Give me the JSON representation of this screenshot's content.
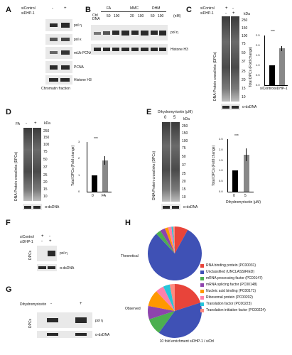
{
  "panels": {
    "A": {
      "label": "A",
      "conditions": [
        "siControl",
        "siDHP-1"
      ],
      "signs": [
        "-",
        "+"
      ],
      "blots": [
        "pol η",
        "pol κ",
        "mUb PCNA",
        "PCNA",
        "Histone H3"
      ],
      "footer": "Chromatin fraction"
    },
    "B": {
      "label": "B",
      "groups": [
        "FA",
        "MMC",
        "DHM"
      ],
      "lanes": [
        "Ctrl",
        "DNA",
        "50",
        "100",
        "20",
        "100",
        "50",
        "100"
      ],
      "units": [
        "",
        "",
        "",
        "(μM)",
        "",
        "",
        "",
        "(nM)"
      ],
      "blots": [
        "pol η",
        "Histone H3"
      ]
    },
    "C": {
      "label": "C",
      "conditions": [
        "siControl",
        "siDHP-1"
      ],
      "signs": [
        "+",
        "-",
        "-",
        "+"
      ],
      "kda": "kDa",
      "markers": [
        "250",
        "150",
        "100",
        "75",
        "50",
        "37",
        "25",
        "20",
        "15",
        "10"
      ],
      "ylabel_blot": "DNA-Protein crosslinks (DPCs)",
      "blot_bottom": "α-dsDNA",
      "chart_ylabel": "Total DPCs (Fold change)",
      "significance": "***"
    },
    "D": {
      "label": "D",
      "conditions": [
        "FA"
      ],
      "signs": [
        "-",
        "+"
      ],
      "kda": "kDa",
      "markers": [
        "250",
        "150",
        "100",
        "75",
        "50",
        "37",
        "25",
        "20",
        "15",
        "10"
      ],
      "ylabel_blot": "DNA-Protein crosslinks (DPCs)",
      "blot_bottom": "α-dsDNA",
      "chart_ylabel": "Total DPCs (Fold change)",
      "significance": "***"
    },
    "E": {
      "label": "E",
      "title": "Dihydromyricetin (μM)",
      "lanes": [
        "0",
        "5"
      ],
      "kda": "kDa",
      "markers": [
        "250",
        "150",
        "100",
        "75",
        "50",
        "37",
        "25",
        "20",
        "15",
        "10"
      ],
      "ylabel_blot": "DNA-Protein crosslinks (DPCs)",
      "blot_bottom": "α-dsDNA",
      "chart_ylabel": "Total DPCs (Fold change)",
      "chart_xlabel": "Dihydromyricetin (μM)",
      "significance": "***"
    },
    "F": {
      "label": "F",
      "conditions": [
        "siControl",
        "siDHP-1"
      ],
      "signs": [
        "+",
        "-",
        "-",
        "+"
      ],
      "side": "DPCs",
      "blots": [
        "pol η",
        "α-dsDNA"
      ]
    },
    "G": {
      "label": "G",
      "condition": "Dihydromyricetin",
      "signs": [
        "-",
        "+"
      ],
      "side": "DPCs",
      "blots": [
        "pol η",
        "α-dsDNA"
      ]
    },
    "H": {
      "label": "H",
      "pie_labels": [
        "Theoretical",
        "Observed"
      ],
      "legend": [
        {
          "text": "RNA binding protein (PC00031)",
          "color": "#e8443a"
        },
        {
          "text": "Unclassified (UNCLASSIFIED)",
          "color": "#3f51b5"
        },
        {
          "text": "mRNA processing factor (PC00147)",
          "color": "#4caf50"
        },
        {
          "text": "mRNA splicing factor (PC00148)",
          "color": "#8e44ad"
        },
        {
          "text": "Nucleic acid binding (PC00171)",
          "color": "#ff9800"
        },
        {
          "text": "Ribosomal protein (PC00202)",
          "color": "#ff80ab"
        },
        {
          "text": "Translation factor (PC00223)",
          "color": "#26c6da"
        },
        {
          "text": "Translation initiation factor (PC00224)",
          "color": "#ff8a80"
        }
      ],
      "footer": "10 fold enrichment siDHP-1 / siCtrl"
    }
  },
  "chart_data": [
    {
      "type": "bar",
      "categories": [
        "siControl",
        "siDHP-1"
      ],
      "values": [
        1.0,
        1.85
      ],
      "errors": [
        0,
        0.12
      ],
      "colors": [
        "#000000",
        "#888888"
      ],
      "ylabel": "Total DPCs (Fold change)",
      "ylim": [
        0,
        2.5
      ],
      "yticks": [
        "0.0",
        "0.5",
        "1.0",
        "1.5",
        "2.0",
        "2.5"
      ]
    },
    {
      "type": "bar",
      "categories": [
        "0",
        "FA"
      ],
      "values": [
        1.0,
        1.9
      ],
      "errors": [
        0,
        0.25
      ],
      "colors": [
        "#000000",
        "#888888"
      ],
      "ylabel": "Total DPCs (Fold change)",
      "ylim": [
        0,
        3
      ],
      "yticks": [
        "0",
        "1",
        "2",
        "3"
      ]
    },
    {
      "type": "bar",
      "categories": [
        "0",
        "5"
      ],
      "values": [
        1.0,
        1.75
      ],
      "errors": [
        0,
        0.3
      ],
      "colors": [
        "#000000",
        "#888888"
      ],
      "ylabel": "Total DPCs (Fold change)",
      "xlabel": "Dihydromyricetin (μM)",
      "ylim": [
        0,
        2.5
      ],
      "yticks": [
        "0.0",
        "0.5",
        "1.0",
        "1.5",
        "2.0",
        "2.5"
      ]
    },
    {
      "type": "pie",
      "name": "Theoretical",
      "values": [
        8,
        80,
        3,
        3,
        2,
        2,
        1,
        1
      ],
      "colors": [
        "#e8443a",
        "#3f51b5",
        "#4caf50",
        "#8e44ad",
        "#ff9800",
        "#ff80ab",
        "#26c6da",
        "#ff8a80"
      ]
    },
    {
      "type": "pie",
      "name": "Observed",
      "values": [
        20,
        40,
        10,
        8,
        10,
        5,
        4,
        3
      ],
      "colors": [
        "#e8443a",
        "#3f51b5",
        "#4caf50",
        "#8e44ad",
        "#ff9800",
        "#ff80ab",
        "#26c6da",
        "#ff8a80"
      ]
    }
  ]
}
